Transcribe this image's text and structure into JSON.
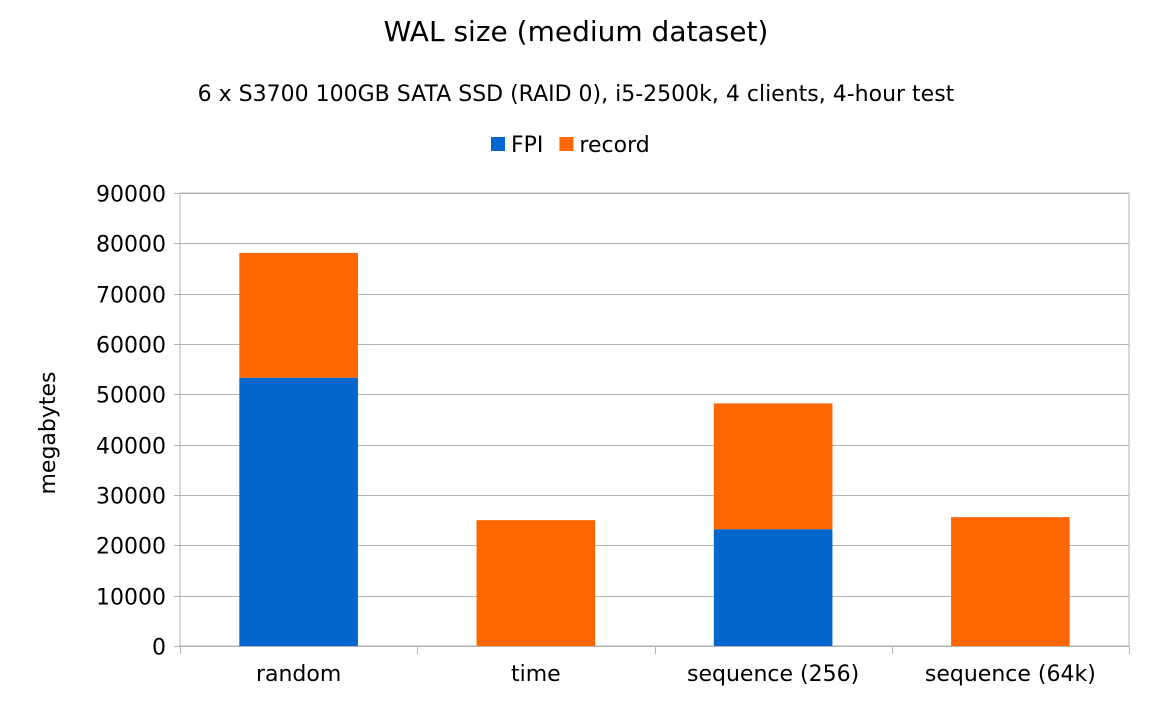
{
  "chart_data": {
    "type": "bar",
    "stacked": true,
    "title": "WAL size (medium dataset)",
    "subtitle": "6 x S3700 100GB SATA SSD (RAID 0), i5-2500k, 4 clients, 4-hour test",
    "xlabel": "",
    "ylabel": "megabytes",
    "ylim": [
      0,
      90000
    ],
    "yticks": [
      0,
      10000,
      20000,
      30000,
      40000,
      50000,
      60000,
      70000,
      80000,
      90000
    ],
    "grid": true,
    "legend": "top-center",
    "categories": [
      "random",
      "time",
      "sequence (256)",
      "sequence (64k)"
    ],
    "series": [
      {
        "name": "FPI",
        "color": "#0366CC",
        "values": [
          53300,
          0,
          23200,
          0
        ]
      },
      {
        "name": "record",
        "color": "#FF6600",
        "values": [
          24800,
          25000,
          25000,
          25600
        ]
      }
    ]
  }
}
